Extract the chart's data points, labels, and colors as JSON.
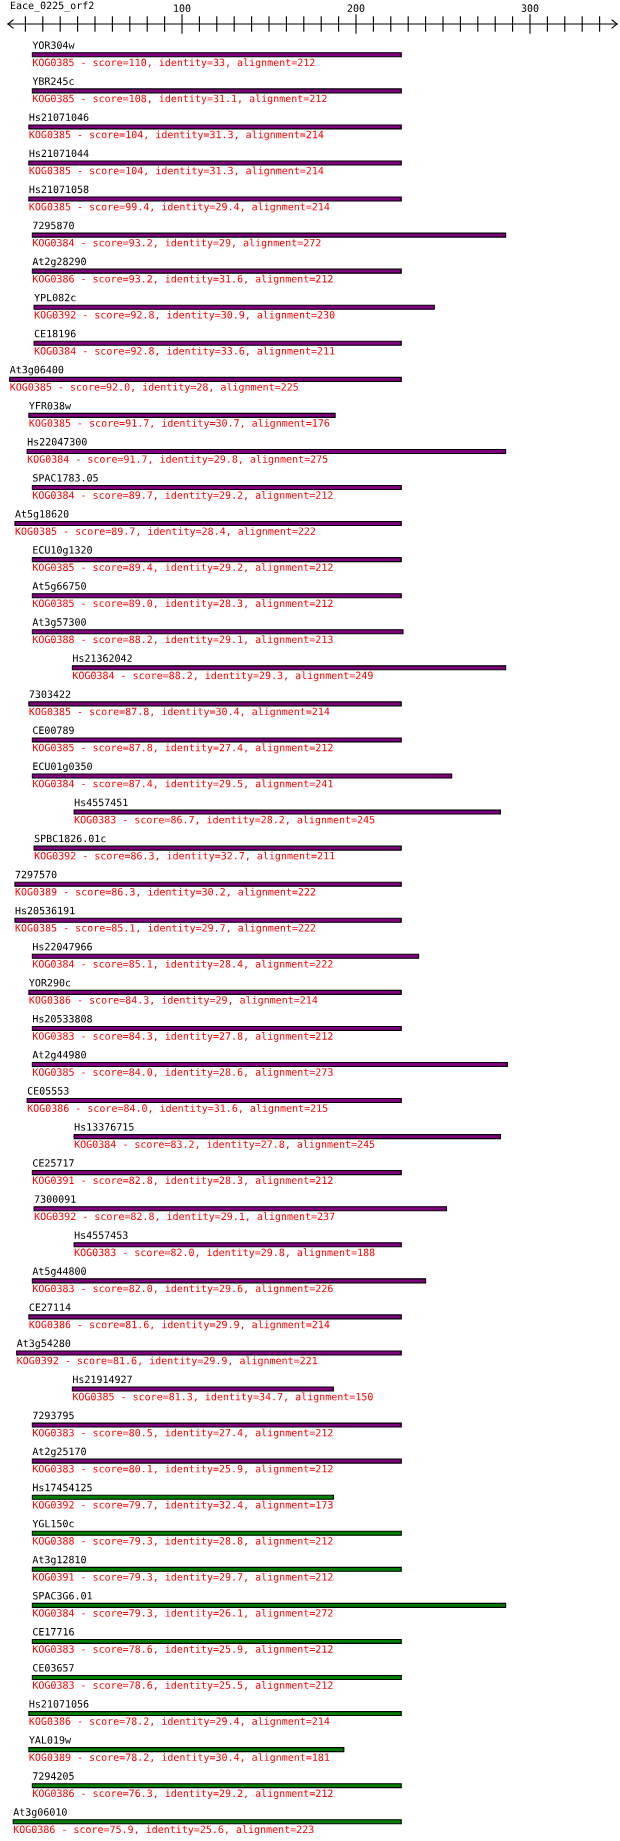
{
  "chart_data": {
    "type": "bar",
    "orientation": "horizontal",
    "title": "Eace_0225_orf2",
    "categories": [
      "YOR304w",
      "YBR245c",
      "Hs21071046",
      "Hs21071044",
      "Hs21071058",
      "7295870",
      "At2g28290",
      "YPL082c",
      "CE18196",
      "At3g06400",
      "YFR038w",
      "Hs22047300",
      "SPAC1783.05",
      "At5g18620",
      "ECU10g1320",
      "At5g66750",
      "At3g57300",
      "Hs21362042",
      "7303422",
      "CE00789",
      "ECU01g0350",
      "Hs4557451",
      "SPBC1826.01c",
      "7297570",
      "Hs20536191",
      "Hs22047966",
      "YOR290c",
      "Hs20533808",
      "At2g44980",
      "CE05553",
      "Hs13376715",
      "CE25717",
      "7300091",
      "Hs4557453",
      "At5g44800",
      "CE27114",
      "At3g54280",
      "Hs21914927",
      "7293795",
      "At2g25170",
      "Hs17454125",
      "YGL150c",
      "At3g12810",
      "SPAC3G6.01",
      "CE17716",
      "CE03657",
      "Hs21071056",
      "YAL019w",
      "7294205",
      "At3g06010"
    ],
    "base": [
      14,
      14,
      12,
      12,
      12,
      14,
      14,
      15,
      15,
      1,
      12,
      11,
      14,
      4,
      14,
      14,
      14,
      37,
      12,
      14,
      14,
      38,
      15,
      4,
      4,
      14,
      12,
      14,
      14,
      11,
      38,
      14,
      15,
      38,
      14,
      12,
      5,
      37,
      14,
      14,
      14,
      14,
      14,
      14,
      14,
      14,
      12,
      12,
      14,
      3
    ],
    "values": [
      212,
      212,
      214,
      214,
      214,
      272,
      212,
      230,
      211,
      225,
      176,
      275,
      212,
      222,
      212,
      212,
      213,
      249,
      214,
      212,
      241,
      245,
      211,
      222,
      222,
      222,
      214,
      212,
      273,
      215,
      245,
      212,
      237,
      188,
      226,
      214,
      221,
      150,
      212,
      212,
      173,
      212,
      212,
      272,
      212,
      212,
      214,
      181,
      212,
      223
    ],
    "colors": [
      "#800080",
      "#800080",
      "#800080",
      "#800080",
      "#800080",
      "#800080",
      "#800080",
      "#800080",
      "#800080",
      "#800080",
      "#800080",
      "#800080",
      "#800080",
      "#800080",
      "#800080",
      "#800080",
      "#800080",
      "#800080",
      "#800080",
      "#800080",
      "#800080",
      "#800080",
      "#800080",
      "#800080",
      "#800080",
      "#800080",
      "#800080",
      "#800080",
      "#800080",
      "#800080",
      "#800080",
      "#800080",
      "#800080",
      "#800080",
      "#800080",
      "#800080",
      "#800080",
      "#800080",
      "#800080",
      "#800080",
      "#008000",
      "#008000",
      "#008000",
      "#008000",
      "#008000",
      "#008000",
      "#008000",
      "#008000",
      "#008000",
      "#008000"
    ],
    "xlim": [
      0,
      350
    ],
    "xticks": [
      {
        "value": 10,
        "label": null
      },
      {
        "value": 20,
        "label": null
      },
      {
        "value": 30,
        "label": null
      },
      {
        "value": 40,
        "label": null
      },
      {
        "value": 50,
        "label": null
      },
      {
        "value": 60,
        "label": null
      },
      {
        "value": 70,
        "label": null
      },
      {
        "value": 80,
        "label": null
      },
      {
        "value": 90,
        "label": null
      },
      100,
      {
        "value": 110,
        "label": null
      },
      {
        "value": 120,
        "label": null
      },
      {
        "value": 130,
        "label": null
      },
      {
        "value": 140,
        "label": null
      },
      {
        "value": 150,
        "label": null
      },
      {
        "value": 160,
        "label": null
      },
      {
        "value": 170,
        "label": null
      },
      {
        "value": 180,
        "label": null
      },
      {
        "value": 190,
        "label": null
      },
      200,
      {
        "value": 210,
        "label": null
      },
      {
        "value": 220,
        "label": null
      },
      {
        "value": 230,
        "label": null
      },
      {
        "value": 240,
        "label": null
      },
      {
        "value": 250,
        "label": null
      },
      {
        "value": 260,
        "label": null
      },
      {
        "value": 270,
        "label": null
      },
      {
        "value": 280,
        "label": null
      },
      {
        "value": 290,
        "label": null
      },
      300,
      {
        "value": 310,
        "label": null
      },
      {
        "value": 320,
        "label": null
      },
      {
        "value": 330,
        "label": null
      },
      {
        "value": 340,
        "label": null
      }
    ],
    "tick_labels": "x",
    "annotations": [
      {
        "text": "KOG0385 - score=110, identity=33, alignment=212",
        "x": 14,
        "y": "YOR304w"
      },
      {
        "text": "KOG0385 - score=108, identity=31.1, alignment=212",
        "x": 14,
        "y": "YBR245c"
      },
      {
        "text": "KOG0385 - score=104, identity=31.3, alignment=214",
        "x": 12,
        "y": "Hs21071046"
      },
      {
        "text": "KOG0385 - score=104, identity=31.3, alignment=214",
        "x": 12,
        "y": "Hs21071044"
      },
      {
        "text": "KOG0385 - score=99.4, identity=29.4, alignment=214",
        "x": 12,
        "y": "Hs21071058"
      },
      {
        "text": "KOG0384 - score=93.2, identity=29, alignment=272",
        "x": 14,
        "y": "7295870"
      },
      {
        "text": "KOG0386 - score=93.2, identity=31.6, alignment=212",
        "x": 14,
        "y": "At2g28290"
      },
      {
        "text": "KOG0392 - score=92.8, identity=30.9, alignment=230",
        "x": 15,
        "y": "YPL082c"
      },
      {
        "text": "KOG0384 - score=92.8, identity=33.6, alignment=211",
        "x": 15,
        "y": "CE18196"
      },
      {
        "text": "KOG0385 - score=92.0, identity=28, alignment=225",
        "x": 1,
        "y": "At3g06400"
      },
      {
        "text": "KOG0385 - score=91.7, identity=30.7, alignment=176",
        "x": 12,
        "y": "YFR038w"
      },
      {
        "text": "KOG0384 - score=91.7, identity=29.8, alignment=275",
        "x": 11,
        "y": "Hs22047300"
      },
      {
        "text": "KOG0384 - score=89.7, identity=29.2, alignment=212",
        "x": 14,
        "y": "SPAC1783.05"
      },
      {
        "text": "KOG0385 - score=89.7, identity=28.4, alignment=222",
        "x": 4,
        "y": "At5g18620"
      },
      {
        "text": "KOG0385 - score=89.4, identity=29.2, alignment=212",
        "x": 14,
        "y": "ECU10g1320"
      },
      {
        "text": "KOG0385 - score=89.0, identity=28.3, alignment=212",
        "x": 14,
        "y": "At5g66750"
      },
      {
        "text": "KOG0388 - score=88.2, identity=29.1, alignment=213",
        "x": 14,
        "y": "At3g57300"
      },
      {
        "text": "KOG0384 - score=88.2, identity=29.3, alignment=249",
        "x": 37,
        "y": "Hs21362042"
      },
      {
        "text": "KOG0385 - score=87.8, identity=30.4, alignment=214",
        "x": 12,
        "y": "7303422"
      },
      {
        "text": "KOG0385 - score=87.8, identity=27.4, alignment=212",
        "x": 14,
        "y": "CE00789"
      },
      {
        "text": "KOG0384 - score=87.4, identity=29.5, alignment=241",
        "x": 14,
        "y": "ECU01g0350"
      },
      {
        "text": "KOG0383 - score=86.7, identity=28.2, alignment=245",
        "x": 38,
        "y": "Hs4557451"
      },
      {
        "text": "KOG0392 - score=86.3, identity=32.7, alignment=211",
        "x": 15,
        "y": "SPBC1826.01c"
      },
      {
        "text": "KOG0389 - score=86.3, identity=30.2, alignment=222",
        "x": 4,
        "y": "7297570"
      },
      {
        "text": "KOG0385 - score=85.1, identity=29.7, alignment=222",
        "x": 4,
        "y": "Hs20536191"
      },
      {
        "text": "KOG0384 - score=85.1, identity=28.4, alignment=222",
        "x": 14,
        "y": "Hs22047966"
      },
      {
        "text": "KOG0386 - score=84.3, identity=29, alignment=214",
        "x": 12,
        "y": "YOR290c"
      },
      {
        "text": "KOG0383 - score=84.3, identity=27.8, alignment=212",
        "x": 14,
        "y": "Hs20533808"
      },
      {
        "text": "KOG0385 - score=84.0, identity=28.6, alignment=273",
        "x": 14,
        "y": "At2g44980"
      },
      {
        "text": "KOG0386 - score=84.0, identity=31.6, alignment=215",
        "x": 11,
        "y": "CE05553"
      },
      {
        "text": "KOG0384 - score=83.2, identity=27.8, alignment=245",
        "x": 38,
        "y": "Hs13376715"
      },
      {
        "text": "KOG0391 - score=82.8, identity=28.3, alignment=212",
        "x": 14,
        "y": "CE25717"
      },
      {
        "text": "KOG0392 - score=82.8, identity=29.1, alignment=237",
        "x": 15,
        "y": "7300091"
      },
      {
        "text": "KOG0383 - score=82.0, identity=29.8, alignment=188",
        "x": 38,
        "y": "Hs4557453"
      },
      {
        "text": "KOG0383 - score=82.0, identity=29.6, alignment=226",
        "x": 14,
        "y": "At5g44800"
      },
      {
        "text": "KOG0386 - score=81.6, identity=29.9, alignment=214",
        "x": 12,
        "y": "CE27114"
      },
      {
        "text": "KOG0392 - score=81.6, identity=29.9, alignment=221",
        "x": 5,
        "y": "At3g54280"
      },
      {
        "text": "KOG0385 - score=81.3, identity=34.7, alignment=150",
        "x": 37,
        "y": "Hs21914927"
      },
      {
        "text": "KOG0383 - score=80.5, identity=27.4, alignment=212",
        "x": 14,
        "y": "7293795"
      },
      {
        "text": "KOG0383 - score=80.1, identity=25.9, alignment=212",
        "x": 14,
        "y": "At2g25170"
      },
      {
        "text": "KOG0392 - score=79.7, identity=32.4, alignment=173",
        "x": 14,
        "y": "Hs17454125"
      },
      {
        "text": "KOG0388 - score=79.3, identity=28.8, alignment=212",
        "x": 14,
        "y": "YGL150c"
      },
      {
        "text": "KOG0391 - score=79.3, identity=29.7, alignment=212",
        "x": 14,
        "y": "At3g12810"
      },
      {
        "text": "KOG0384 - score=79.3, identity=26.1, alignment=272",
        "x": 14,
        "y": "SPAC3G6.01"
      },
      {
        "text": "KOG0383 - score=78.6, identity=25.9, alignment=212",
        "x": 14,
        "y": "CE17716"
      },
      {
        "text": "KOG0383 - score=78.6, identity=25.5, alignment=212",
        "x": 14,
        "y": "CE03657"
      },
      {
        "text": "KOG0386 - score=78.2, identity=29.4, alignment=214",
        "x": 12,
        "y": "Hs21071056"
      },
      {
        "text": "KOG0389 - score=78.2, identity=30.4, alignment=181",
        "x": 12,
        "y": "YAL019w"
      },
      {
        "text": "KOG0386 - score=76.3, identity=29.2, alignment=212",
        "x": 14,
        "y": "7294205"
      },
      {
        "text": "KOG0386 - score=75.9, identity=25.6, alignment=223",
        "x": 3,
        "y": "At3g06010"
      }
    ]
  }
}
